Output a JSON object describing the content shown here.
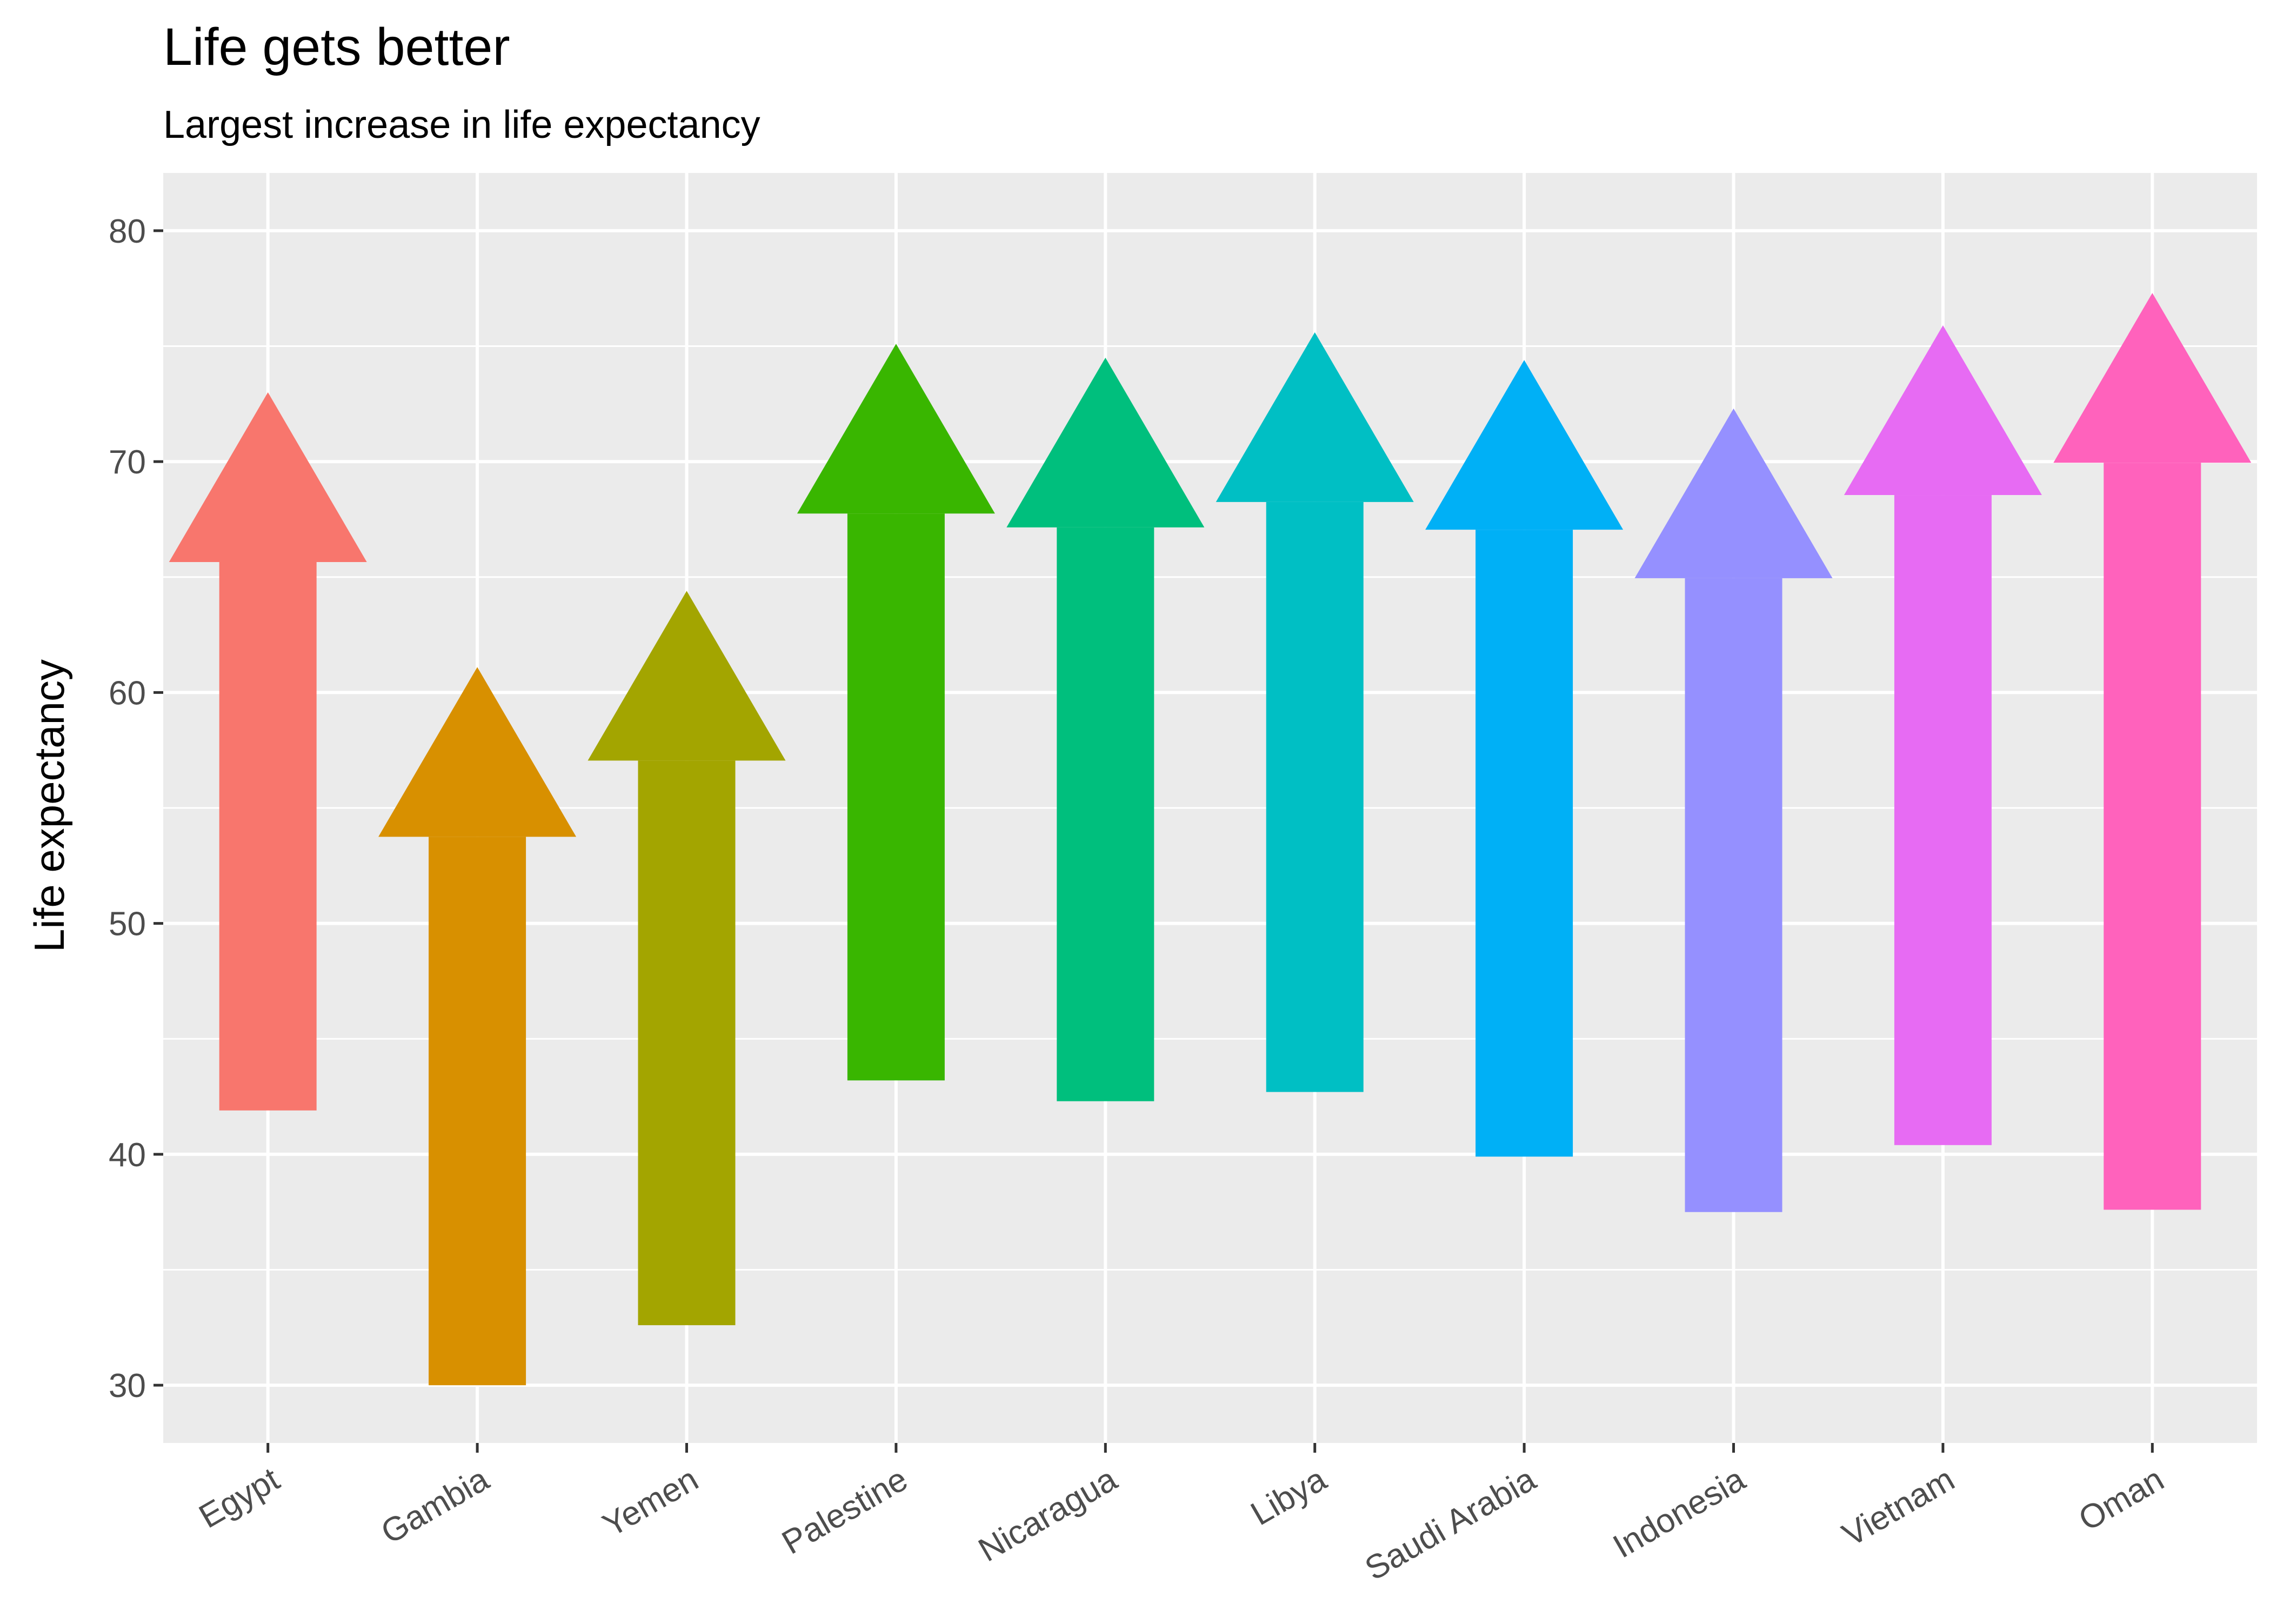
{
  "chart_data": {
    "type": "bar",
    "title": "Life gets better",
    "subtitle": "Largest increase in life expectancy",
    "xlabel": "",
    "ylabel": "Life expectancy",
    "ylim": [
      27.5,
      82.5
    ],
    "yticks": [
      30,
      40,
      50,
      60,
      70,
      80
    ],
    "grid": true,
    "legend": "none",
    "categories": [
      "Egypt",
      "Gambia",
      "Yemen",
      "Palestine",
      "Nicaragua",
      "Libya",
      "Saudi Arabia",
      "Indonesia",
      "Vietnam",
      "Oman"
    ],
    "start": [
      41.9,
      30.0,
      32.6,
      43.2,
      42.3,
      42.7,
      39.9,
      37.5,
      40.4,
      37.6
    ],
    "end": [
      73.0,
      61.1,
      64.4,
      75.1,
      74.5,
      75.6,
      74.4,
      72.3,
      75.9,
      77.3
    ],
    "colors": [
      "#F8766D",
      "#D89000",
      "#A3A500",
      "#39B600",
      "#00BF7D",
      "#00BFC4",
      "#00B0F6",
      "#9590FF",
      "#E76BF3",
      "#FF62BC"
    ]
  }
}
